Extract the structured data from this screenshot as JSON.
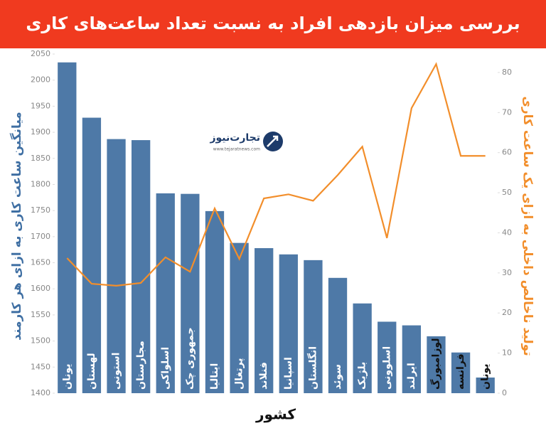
{
  "chart_data": {
    "type": "bar-line",
    "title": "بررسی میزان بازدهی افراد به نسبت تعداد ساعت‌های کاری",
    "ylabel": "میانگین ساعت کاری به ازای هر کارمند",
    "y2label": "تولید ناخالص داخلی به ازای یک ساعت کاری",
    "xlabel": "کشور",
    "logo_name": "تجارت‌نیوز",
    "logo_url": "www.tejaratnews.com",
    "categories": [
      "یونان",
      "لهستان",
      "استونی",
      "مجارستان",
      "اسلواکی",
      "جمهوری چک",
      "ایتالیا",
      "پرتغال",
      "فنلاند",
      "اسپانیا",
      "انگلستان",
      "سوئد",
      "بلژیک",
      "اسلوونی",
      "ایرلند",
      "لوزامبورگ",
      "فرانسه",
      "یونان"
    ],
    "series": [
      {
        "type": "bar",
        "color": "#4e79a7",
        "values": [
          2034,
          1928,
          1887,
          1885,
          1783,
          1782,
          1749,
          1688,
          1678,
          1666,
          1655,
          1621,
          1572,
          1537,
          1530,
          1509,
          1478,
          1430
        ]
      },
      {
        "type": "line",
        "axis": "y2",
        "color": "#f28e2b",
        "values": [
          33.7,
          27.3,
          26.8,
          27.5,
          33.9,
          30.3,
          46.1,
          33.5,
          48.6,
          49.6,
          48.0,
          54.4,
          61.5,
          38.7,
          71.1,
          82.1,
          59.2,
          59.2
        ]
      }
    ],
    "ylim": [
      1400,
      2050
    ],
    "yticks": [
      1400,
      1450,
      1500,
      1550,
      1600,
      1650,
      1700,
      1750,
      1800,
      1850,
      1900,
      1950,
      2000,
      2050
    ],
    "y2lim": [
      0,
      84.6
    ],
    "y2ticks": [
      0,
      10,
      20,
      30,
      40,
      50,
      60,
      70,
      80
    ],
    "grid": false
  }
}
